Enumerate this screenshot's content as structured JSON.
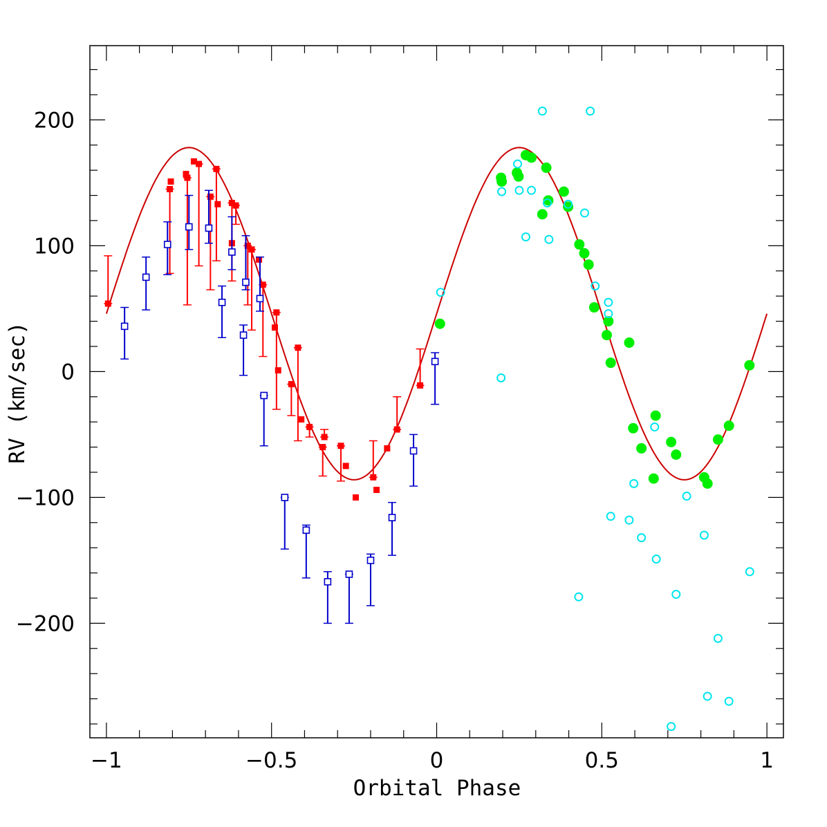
{
  "chart_data": {
    "type": "scatter",
    "xlabel": "Orbital Phase",
    "ylabel": "RV (km/sec)",
    "xlim": [
      -1.05,
      1.05
    ],
    "ylim": [
      -291,
      259
    ],
    "x_ticks": [
      -1,
      -0.5,
      0,
      0.5,
      1
    ],
    "x_tick_labels": [
      "−1",
      "−0.5",
      "0",
      "0.5",
      "1"
    ],
    "y_ticks": [
      -200,
      -100,
      0,
      100,
      200
    ],
    "y_tick_labels": [
      "−200",
      "−100",
      "0",
      "100",
      "200"
    ],
    "grid": false,
    "colors": {
      "curve": "#cc0000",
      "red": "#ff0000",
      "blue": "#0000cc",
      "green": "#00ee00",
      "cyan": "#00e5ee"
    },
    "model_curve": {
      "type": "line",
      "gamma": 46,
      "amplitude": 132,
      "period_in_phase": 1,
      "x_range": [
        -1,
        1
      ]
    },
    "series": [
      {
        "marker": "filled-square",
        "color": "red",
        "points": [
          {
            "x": -0.995,
            "y": 54,
            "lo": 54,
            "hi": 92
          },
          {
            "x": -0.805,
            "y": 151
          },
          {
            "x": -0.808,
            "y": 145,
            "lo": 78,
            "hi": 145
          },
          {
            "x": -0.759,
            "y": 157
          },
          {
            "x": -0.755,
            "y": 154,
            "lo": 53,
            "hi": 154
          },
          {
            "x": -0.735,
            "y": 167
          },
          {
            "x": -0.72,
            "y": 165,
            "lo": 84,
            "hi": 165
          },
          {
            "x": -0.685,
            "y": 139,
            "lo": 65,
            "hi": 139
          },
          {
            "x": -0.667,
            "y": 161,
            "lo": 88,
            "hi": 161
          },
          {
            "x": -0.663,
            "y": 133
          },
          {
            "x": -0.62,
            "y": 134,
            "lo": 72,
            "hi": 134
          },
          {
            "x": -0.62,
            "y": 102
          },
          {
            "x": -0.608,
            "y": 132,
            "lo": 117,
            "hi": 132
          },
          {
            "x": -0.572,
            "y": 100,
            "lo": 53,
            "hi": 100
          },
          {
            "x": -0.56,
            "y": 97,
            "lo": 33,
            "hi": 97
          },
          {
            "x": -0.538,
            "y": 89
          },
          {
            "x": -0.526,
            "y": 69,
            "lo": 12,
            "hi": 69
          },
          {
            "x": -0.485,
            "y": 47,
            "lo": -30,
            "hi": 47
          },
          {
            "x": -0.49,
            "y": 35
          },
          {
            "x": -0.48,
            "y": 1
          },
          {
            "x": -0.44,
            "y": -10,
            "lo": -35,
            "hi": -10
          },
          {
            "x": -0.42,
            "y": 19,
            "lo": -55,
            "hi": 19
          },
          {
            "x": -0.41,
            "y": -38
          },
          {
            "x": -0.385,
            "y": -44,
            "lo": -52,
            "hi": -44
          },
          {
            "x": -0.345,
            "y": -60,
            "lo": -83,
            "hi": -60
          },
          {
            "x": -0.34,
            "y": -52,
            "lo": -52,
            "hi": -46
          },
          {
            "x": -0.29,
            "y": -59,
            "lo": -87,
            "hi": -59
          },
          {
            "x": -0.275,
            "y": -75
          },
          {
            "x": -0.245,
            "y": -100
          },
          {
            "x": -0.192,
            "y": -84,
            "lo": -84,
            "hi": -55
          },
          {
            "x": -0.182,
            "y": -94
          },
          {
            "x": -0.15,
            "y": -61
          },
          {
            "x": -0.12,
            "y": -46,
            "lo": -46,
            "hi": -20
          },
          {
            "x": -0.05,
            "y": -11,
            "lo": -11,
            "hi": 18
          }
        ]
      },
      {
        "marker": "open-square",
        "color": "blue",
        "points": [
          {
            "x": -0.945,
            "y": 36,
            "lo": 10,
            "hi": 51
          },
          {
            "x": -0.88,
            "y": 75,
            "lo": 49,
            "hi": 91
          },
          {
            "x": -0.815,
            "y": 101,
            "lo": 77,
            "hi": 119
          },
          {
            "x": -0.75,
            "y": 115,
            "lo": 97,
            "hi": 140
          },
          {
            "x": -0.69,
            "y": 114,
            "lo": 102,
            "hi": 144
          },
          {
            "x": -0.65,
            "y": 55,
            "lo": 27,
            "hi": 68
          },
          {
            "x": -0.62,
            "y": 95,
            "lo": 81,
            "hi": 123
          },
          {
            "x": -0.585,
            "y": 29,
            "lo": -3,
            "hi": 37
          },
          {
            "x": -0.578,
            "y": 71,
            "lo": 65,
            "hi": 108
          },
          {
            "x": -0.535,
            "y": 58,
            "lo": 48,
            "hi": 91
          },
          {
            "x": -0.523,
            "y": -19,
            "lo": -59,
            "hi": -19
          },
          {
            "x": -0.46,
            "y": -100,
            "lo": -141,
            "hi": -100
          },
          {
            "x": -0.395,
            "y": -126,
            "lo": -164,
            "hi": -122
          },
          {
            "x": -0.33,
            "y": -167,
            "lo": -200,
            "hi": -159
          },
          {
            "x": -0.265,
            "y": -161,
            "lo": -200,
            "hi": -161
          },
          {
            "x": -0.2,
            "y": -150,
            "lo": -186,
            "hi": -145
          },
          {
            "x": -0.135,
            "y": -116,
            "lo": -146,
            "hi": -104
          },
          {
            "x": -0.07,
            "y": -63,
            "lo": -91,
            "hi": -50
          },
          {
            "x": -0.005,
            "y": 8,
            "lo": -26,
            "hi": 15
          }
        ]
      },
      {
        "marker": "filled-circle",
        "color": "green",
        "points": [
          {
            "x": 0.01,
            "y": 38
          },
          {
            "x": 0.195,
            "y": 154
          },
          {
            "x": 0.197,
            "y": 151
          },
          {
            "x": 0.243,
            "y": 158
          },
          {
            "x": 0.248,
            "y": 155
          },
          {
            "x": 0.27,
            "y": 172
          },
          {
            "x": 0.287,
            "y": 170
          },
          {
            "x": 0.32,
            "y": 125
          },
          {
            "x": 0.332,
            "y": 162
          },
          {
            "x": 0.338,
            "y": 136
          },
          {
            "x": 0.385,
            "y": 143
          },
          {
            "x": 0.398,
            "y": 131
          },
          {
            "x": 0.432,
            "y": 101
          },
          {
            "x": 0.447,
            "y": 94
          },
          {
            "x": 0.46,
            "y": 85
          },
          {
            "x": 0.477,
            "y": 51
          },
          {
            "x": 0.515,
            "y": 29
          },
          {
            "x": 0.52,
            "y": 40
          },
          {
            "x": 0.527,
            "y": 7
          },
          {
            "x": 0.583,
            "y": 23
          },
          {
            "x": 0.595,
            "y": -45
          },
          {
            "x": 0.62,
            "y": -61
          },
          {
            "x": 0.657,
            "y": -85
          },
          {
            "x": 0.663,
            "y": -35
          },
          {
            "x": 0.71,
            "y": -56
          },
          {
            "x": 0.725,
            "y": -66
          },
          {
            "x": 0.81,
            "y": -84
          },
          {
            "x": 0.82,
            "y": -89
          },
          {
            "x": 0.852,
            "y": -54
          },
          {
            "x": 0.885,
            "y": -43
          },
          {
            "x": 0.947,
            "y": 5
          }
        ]
      },
      {
        "marker": "open-circle",
        "color": "cyan",
        "points": [
          {
            "x": 0.012,
            "y": 63
          },
          {
            "x": 0.195,
            "y": -5
          },
          {
            "x": 0.197,
            "y": 143
          },
          {
            "x": 0.245,
            "y": 165
          },
          {
            "x": 0.25,
            "y": 144
          },
          {
            "x": 0.27,
            "y": 107
          },
          {
            "x": 0.287,
            "y": 144
          },
          {
            "x": 0.32,
            "y": 207
          },
          {
            "x": 0.335,
            "y": 134
          },
          {
            "x": 0.34,
            "y": 105
          },
          {
            "x": 0.398,
            "y": 133
          },
          {
            "x": 0.43,
            "y": -179
          },
          {
            "x": 0.448,
            "y": 126
          },
          {
            "x": 0.465,
            "y": 207
          },
          {
            "x": 0.48,
            "y": 68
          },
          {
            "x": 0.52,
            "y": 46
          },
          {
            "x": 0.52,
            "y": 55
          },
          {
            "x": 0.527,
            "y": -115
          },
          {
            "x": 0.583,
            "y": -118
          },
          {
            "x": 0.597,
            "y": -89
          },
          {
            "x": 0.62,
            "y": -132
          },
          {
            "x": 0.66,
            "y": -44
          },
          {
            "x": 0.665,
            "y": -149
          },
          {
            "x": 0.71,
            "y": -282
          },
          {
            "x": 0.725,
            "y": -177
          },
          {
            "x": 0.757,
            "y": -99
          },
          {
            "x": 0.81,
            "y": -130
          },
          {
            "x": 0.82,
            "y": -258
          },
          {
            "x": 0.852,
            "y": -212
          },
          {
            "x": 0.885,
            "y": -262
          },
          {
            "x": 0.948,
            "y": -159
          }
        ]
      }
    ]
  }
}
